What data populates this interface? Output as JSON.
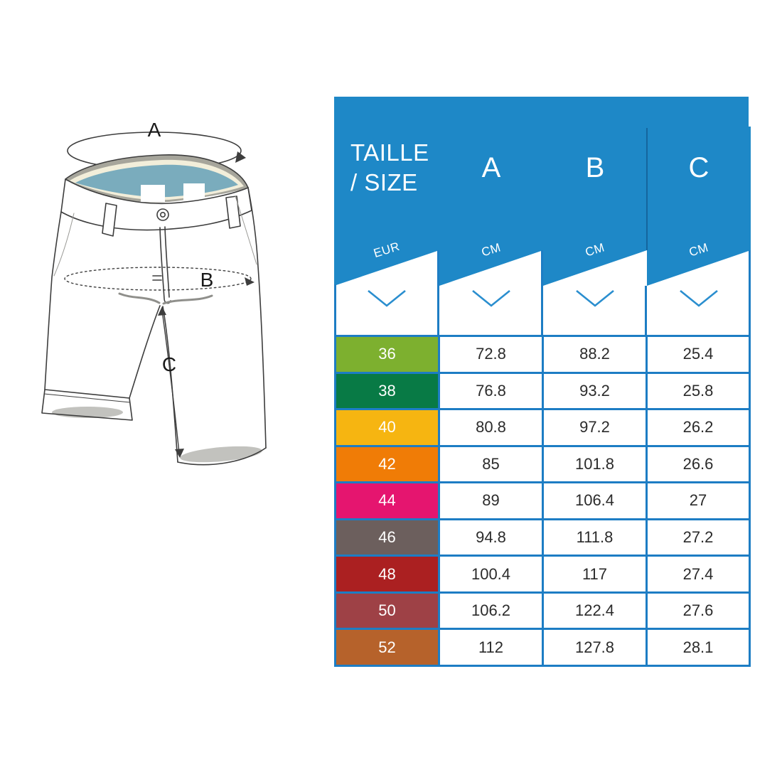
{
  "diagram": {
    "label_a": "A",
    "label_b": "B",
    "label_c": "C"
  },
  "table": {
    "title_line1": "TAILLE",
    "title_line2": "/ SIZE",
    "columns": [
      "A",
      "B",
      "C"
    ],
    "units": {
      "size": "EUR",
      "a": "CM",
      "b": "CM",
      "c": "CM"
    },
    "rows": [
      {
        "size": "36",
        "color": "#7db02f",
        "a": "72.8",
        "b": "88.2",
        "c": "25.4"
      },
      {
        "size": "38",
        "color": "#087a45",
        "a": "76.8",
        "b": "93.2",
        "c": "25.8"
      },
      {
        "size": "40",
        "color": "#f6b511",
        "a": "80.8",
        "b": "97.2",
        "c": "26.2"
      },
      {
        "size": "42",
        "color": "#f07c06",
        "a": "85",
        "b": "101.8",
        "c": "26.6"
      },
      {
        "size": "44",
        "color": "#e5156f",
        "a": "89",
        "b": "106.4",
        "c": "27"
      },
      {
        "size": "46",
        "color": "#6c5f5d",
        "a": "94.8",
        "b": "111.8",
        "c": "27.2"
      },
      {
        "size": "48",
        "color": "#ab2021",
        "a": "100.4",
        "b": "117",
        "c": "27.4"
      },
      {
        "size": "50",
        "color": "#9e4146",
        "a": "106.2",
        "b": "122.4",
        "c": "27.6"
      },
      {
        "size": "52",
        "color": "#b6622b",
        "a": "112",
        "b": "127.8",
        "c": "28.1"
      }
    ]
  },
  "colors": {
    "header_blue": "#1e88c7",
    "grid_blue": "#1d7dc4",
    "divider_dark": "#15659e",
    "chevron_blue": "#2a8ecf",
    "value_text": "#2b2b2b"
  },
  "chart_data": {
    "type": "table",
    "title": "TAILLE / SIZE",
    "columns": [
      "TAILLE / SIZE (EUR)",
      "A (CM)",
      "B (CM)",
      "C (CM)"
    ],
    "rows": [
      [
        36,
        72.8,
        88.2,
        25.4
      ],
      [
        38,
        76.8,
        93.2,
        25.8
      ],
      [
        40,
        80.8,
        97.2,
        26.2
      ],
      [
        42,
        85,
        101.8,
        26.6
      ],
      [
        44,
        89,
        106.4,
        27
      ],
      [
        46,
        94.8,
        111.8,
        27.2
      ],
      [
        48,
        100.4,
        117,
        27.4
      ],
      [
        50,
        106.2,
        122.4,
        27.6
      ],
      [
        52,
        112,
        127.8,
        28.1
      ]
    ]
  }
}
